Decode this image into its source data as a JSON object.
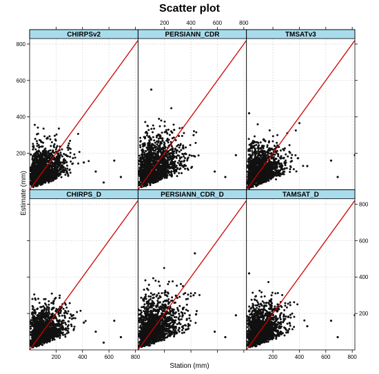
{
  "chart_data": {
    "type": "scatter",
    "title": "Scatter plot",
    "xlabel": "Station (mm)",
    "ylabel": "Estimate (mm)",
    "xlim": [
      0,
      820
    ],
    "ylim": [
      0,
      830
    ],
    "xticks": [
      200,
      400,
      600,
      800
    ],
    "yticks": [
      200,
      400,
      600,
      800
    ],
    "grid": true,
    "reference_line": "y = x",
    "reference_line_color": "#cc0000",
    "strip_color": "#a8dced",
    "point_color": "#111111",
    "panels": [
      {
        "name": "CHIRPSv2",
        "spread": 1.0,
        "max_y": 420,
        "outliers": [
          [
            640,
            160
          ],
          [
            690,
            70
          ],
          [
            560,
            40
          ],
          [
            500,
            100
          ],
          [
            410,
            150
          ]
        ]
      },
      {
        "name": "PERSIANN_CDR",
        "spread": 1.28,
        "max_y": 550,
        "outliers": [
          [
            100,
            550
          ],
          [
            420,
            300
          ],
          [
            390,
            190
          ],
          [
            580,
            100
          ],
          [
            740,
            190
          ],
          [
            660,
            70
          ]
        ]
      },
      {
        "name": "TMSATv3",
        "spread": 1.05,
        "max_y": 420,
        "outliers": [
          [
            20,
            420
          ],
          [
            640,
            160
          ],
          [
            690,
            70
          ],
          [
            460,
            130
          ],
          [
            820,
            190
          ]
        ]
      },
      {
        "name": "CHIRPS_D",
        "spread": 1.0,
        "max_y": 400,
        "outliers": [
          [
            640,
            160
          ],
          [
            690,
            70
          ],
          [
            560,
            40
          ],
          [
            500,
            100
          ],
          [
            410,
            150
          ]
        ]
      },
      {
        "name": "PERSIANN_CDR_D",
        "spread": 1.28,
        "max_y": 530,
        "outliers": [
          [
            430,
            530
          ],
          [
            420,
            300
          ],
          [
            390,
            190
          ],
          [
            580,
            100
          ],
          [
            740,
            190
          ],
          [
            660,
            70
          ]
        ]
      },
      {
        "name": "TAMSAT_D",
        "spread": 1.05,
        "max_y": 420,
        "outliers": [
          [
            20,
            420
          ],
          [
            640,
            160
          ],
          [
            690,
            70
          ],
          [
            460,
            130
          ],
          [
            820,
            190
          ]
        ]
      }
    ]
  }
}
